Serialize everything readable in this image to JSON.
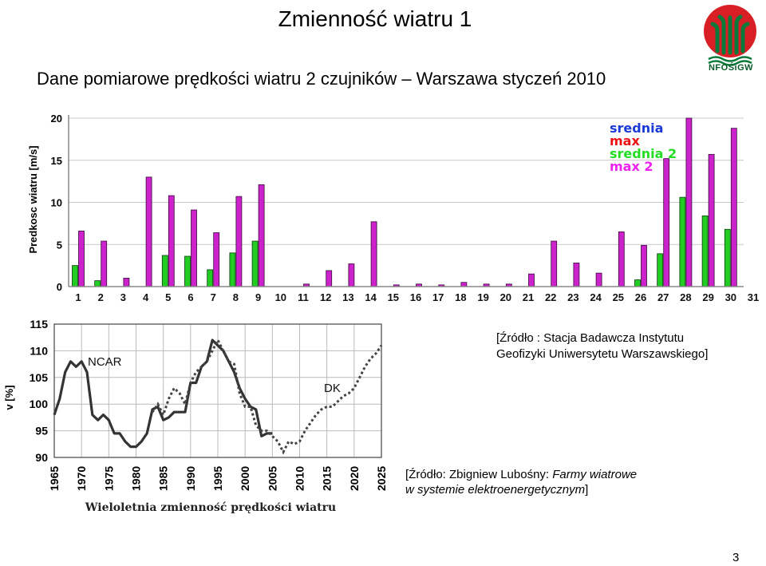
{
  "slide": {
    "title": "Zmienność wiatru 1",
    "subtitle": "Dane pomiarowe prędkości wiatru 2 czujników – Warszawa styczeń 2010",
    "logo_text": "NFOŚiGW",
    "source_1_line1": "[Źródło : Stacja Badawcza Instytutu",
    "source_1_line2": "Geofizyki Uniwersytetu Warszawskiego]",
    "source_2_prefix": "[Źródło: Zbigniew Lubośny: ",
    "source_2_italic1": "Farmy wiatrowe",
    "source_2_italic2": "w systemie elektroenergetycznym",
    "source_2_suffix": "]",
    "page_number": "3"
  },
  "chart_data": [
    {
      "type": "bar",
      "ylabel": "Predkosc wiatru [m/s]",
      "ylim": [
        0,
        20
      ],
      "yticks": [
        "0",
        "5",
        "10",
        "15",
        "20"
      ],
      "categories": [
        "1",
        "2",
        "3",
        "4",
        "5",
        "6",
        "7",
        "8",
        "9",
        "10",
        "11",
        "12",
        "13",
        "14",
        "15",
        "16",
        "17",
        "18",
        "19",
        "20",
        "21",
        "22",
        "23",
        "24",
        "25",
        "26",
        "27",
        "28",
        "29",
        "30",
        "31"
      ],
      "legend": [
        "srednia",
        "max",
        "srednia 2",
        "max 2"
      ],
      "legend_position": "top-right",
      "colors": {
        "green": "#22cc22",
        "magenta": "#cc22cc",
        "legend_srednia": "#1a3bd6",
        "legend_max": "#ee1111",
        "legend_srednia2": "#22dd22",
        "legend_max2": "#ee22ee"
      },
      "series": [
        {
          "name": "srednia 2",
          "values": [
            2.5,
            0.7,
            0,
            0,
            3.7,
            3.6,
            2.0,
            4.0,
            5.4,
            0,
            0,
            0,
            0,
            0,
            0,
            0,
            0,
            0,
            0,
            0,
            0,
            0,
            0,
            0,
            0,
            0.8,
            3.9,
            10.6,
            8.4,
            6.8,
            0
          ]
        },
        {
          "name": "max 2",
          "values": [
            6.6,
            5.4,
            1.0,
            13.0,
            10.8,
            9.1,
            6.4,
            10.7,
            12.1,
            0,
            0.3,
            1.9,
            2.7,
            7.7,
            0.2,
            0.3,
            0.2,
            0.5,
            0.3,
            0.3,
            1.5,
            5.4,
            2.8,
            1.6,
            6.5,
            4.9,
            15.2,
            20.0,
            15.7,
            18.8,
            0
          ]
        }
      ]
    },
    {
      "type": "line",
      "ylabel": "v [%]",
      "xlabel": "Wieloletnia zmienność prędkości wiatru",
      "xlim": [
        1965,
        2025
      ],
      "ylim": [
        90,
        115
      ],
      "xticks": [
        "1965",
        "1970",
        "1975",
        "1980",
        "1985",
        "1990",
        "1995",
        "2000",
        "2005",
        "2010",
        "2015",
        "2020",
        "2025"
      ],
      "yticks": [
        "90",
        "95",
        "100",
        "105",
        "110",
        "115"
      ],
      "annotations": [
        "NCAR",
        "DK"
      ],
      "series": [
        {
          "name": "NCAR",
          "x": [
            1965,
            1966,
            1967,
            1968,
            1969,
            1970,
            1971,
            1972,
            1973,
            1974,
            1975,
            1976,
            1977,
            1978,
            1979,
            1980,
            1981,
            1982,
            1983,
            1984,
            1985,
            1986,
            1987,
            1988,
            1989,
            1990,
            1991,
            1992,
            1993,
            1994,
            1995,
            1996,
            1997,
            1998,
            1999,
            2000,
            2001,
            2002,
            2003,
            2004,
            2005
          ],
          "y": [
            98,
            101,
            106,
            108,
            107,
            108,
            106,
            98,
            97,
            98,
            97,
            94.5,
            94.5,
            93,
            92,
            92,
            93,
            94.5,
            99,
            99.5,
            97,
            97.5,
            98.5,
            98.5,
            98.5,
            104,
            104,
            107,
            108,
            112,
            111,
            110,
            108,
            106,
            103,
            101,
            99.5,
            99,
            94,
            94.5,
            94.5
          ]
        },
        {
          "name": "DK",
          "x": [
            1983,
            1984,
            1985,
            1986,
            1987,
            1988,
            1989,
            1990,
            1991,
            1992,
            1993,
            1994,
            1995,
            1996,
            1997,
            1998,
            1999,
            2000,
            2001,
            2002,
            2003,
            2004,
            2005,
            2006,
            2007,
            2008,
            2009,
            2010,
            2011,
            2012,
            2013,
            2014,
            2015,
            2016,
            2017,
            2018,
            2019,
            2020,
            2021,
            2022,
            2023,
            2024,
            2025
          ],
          "y": [
            98.5,
            100,
            98,
            101,
            103,
            102,
            100,
            104,
            106,
            107,
            108,
            110,
            112,
            110,
            108,
            107.5,
            102,
            99.5,
            99.5,
            96,
            95,
            95,
            94,
            93,
            91,
            93,
            92.5,
            93,
            95,
            96.5,
            98,
            99,
            99.5,
            99.5,
            100.5,
            101.5,
            102,
            103,
            105,
            107,
            108.5,
            109.5,
            111
          ]
        }
      ]
    }
  ]
}
